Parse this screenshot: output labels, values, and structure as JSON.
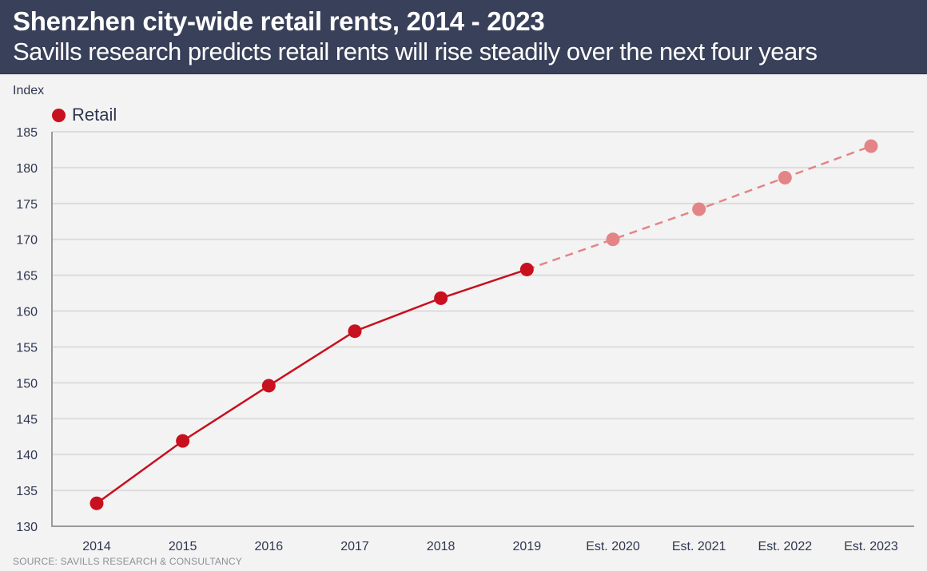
{
  "header": {
    "title": "Shenzhen city-wide retail rents, 2014 - 2023",
    "subtitle": "Savills research predicts retail rents will rise steadily over the next four years"
  },
  "source": "SOURCE: SAVILLS RESEARCH & CONSULTANCY",
  "colors": {
    "header_bg": "#394059",
    "actual": "#c8101e",
    "forecast": "#e38587",
    "text": "#2f3650"
  },
  "chart_data": {
    "type": "line",
    "title": "Shenzhen city-wide retail rents, 2014 - 2023",
    "subtitle": "Savills research predicts retail rents will rise steadily over the next four years",
    "xlabel": "",
    "ylabel": "Index",
    "ylim": [
      130,
      185
    ],
    "yticks": [
      130,
      135,
      140,
      145,
      150,
      155,
      160,
      165,
      170,
      175,
      180,
      185
    ],
    "grid": true,
    "legend_position": "top-left",
    "categories": [
      "2014",
      "2015",
      "2016",
      "2017",
      "2018",
      "2019",
      "Est. 2020",
      "Est. 2021",
      "Est. 2022",
      "Est. 2023"
    ],
    "series": [
      {
        "name": "Retail",
        "values": [
          133.2,
          141.9,
          149.6,
          157.2,
          161.8,
          165.8,
          170.0,
          174.2,
          178.6,
          183.0
        ],
        "forecast_from_index": 5
      }
    ]
  }
}
